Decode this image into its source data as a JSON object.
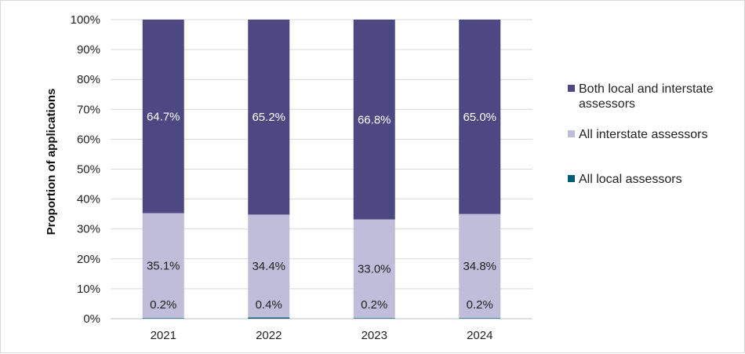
{
  "chart_data": {
    "type": "bar",
    "stacked": true,
    "ylabel": "Proportion of applications",
    "xlabel": "",
    "ylim": [
      0,
      100
    ],
    "y_ticks": [
      0,
      10,
      20,
      30,
      40,
      50,
      60,
      70,
      80,
      90,
      100
    ],
    "y_tick_labels": [
      "0%",
      "10%",
      "20%",
      "30%",
      "40%",
      "50%",
      "60%",
      "70%",
      "80%",
      "90%",
      "100%"
    ],
    "grid": true,
    "legend_position": "right",
    "categories": [
      "2021",
      "2022",
      "2023",
      "2024"
    ],
    "series": [
      {
        "name": "All local assessors",
        "color": "#005f73",
        "values": [
          0.2,
          0.4,
          0.2,
          0.2
        ],
        "labels": [
          "0.2%",
          "0.4%",
          "0.2%",
          "0.2%"
        ],
        "label_color": "#222222"
      },
      {
        "name": "All interstate assessors",
        "color": "#bfbdd9",
        "values": [
          35.1,
          34.4,
          33.0,
          34.8
        ],
        "labels": [
          "35.1%",
          "34.4%",
          "33.0%",
          "34.8%"
        ],
        "label_color": "#222222"
      },
      {
        "name": "Both local and interstate assessors",
        "color": "#4e4882",
        "values": [
          64.7,
          65.2,
          66.8,
          65.0
        ],
        "labels": [
          "64.7%",
          "65.2%",
          "66.8%",
          "65.0%"
        ],
        "label_color": "#ffffff"
      }
    ],
    "legend": [
      {
        "lines": [
          "Both local and interstate",
          "assessors"
        ],
        "color": "#4e4882"
      },
      {
        "lines": [
          "All interstate assessors"
        ],
        "color": "#bfbdd9"
      },
      {
        "lines": [
          "All local assessors"
        ],
        "color": "#005f73"
      }
    ]
  }
}
